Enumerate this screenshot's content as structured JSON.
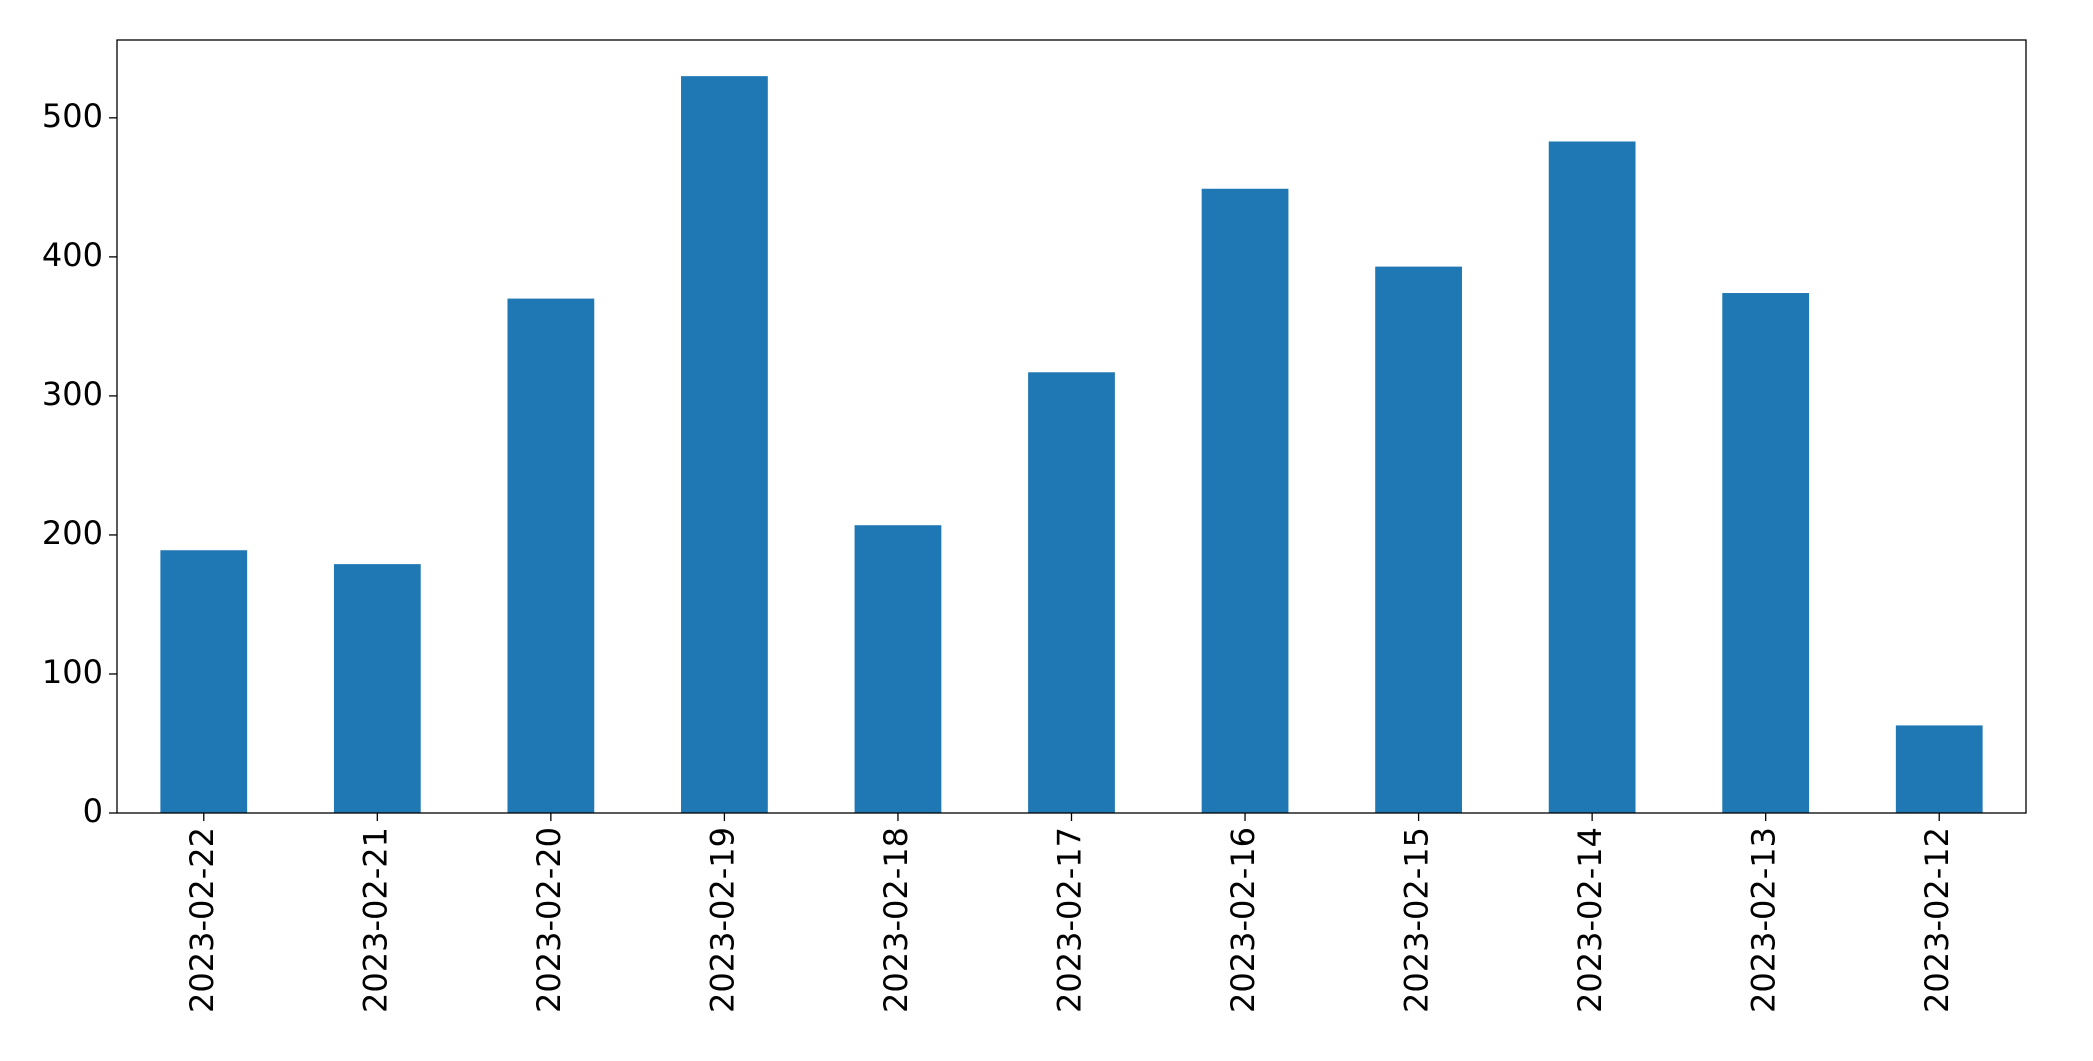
{
  "chart_data": {
    "type": "bar",
    "categories": [
      "2023-02-22",
      "2023-02-21",
      "2023-02-20",
      "2023-02-19",
      "2023-02-18",
      "2023-02-17",
      "2023-02-16",
      "2023-02-15",
      "2023-02-14",
      "2023-02-13",
      "2023-02-12"
    ],
    "values": [
      189,
      179,
      370,
      530,
      207,
      317,
      449,
      393,
      483,
      374,
      63
    ],
    "color": "#1f77b4",
    "ylim": [
      0,
      556
    ],
    "yticks": [
      0,
      100,
      200,
      300,
      400,
      500
    ],
    "grid": false
  }
}
